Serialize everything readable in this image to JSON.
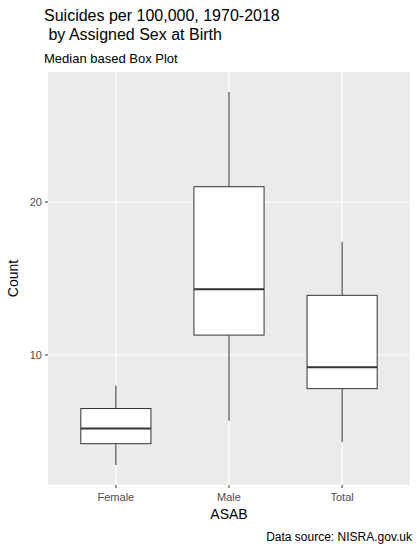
{
  "chart_data": {
    "type": "box",
    "title": "Suicides per 100,000, 1970-2018\n by Assigned Sex at Birth",
    "subtitle": "Median based Box Plot",
    "x_label": "ASAB",
    "y_label": "Count",
    "caption": "Data source: NISRA.gov.uk",
    "categories": [
      "Female",
      "Male",
      "Total"
    ],
    "min": [
      2.8,
      5.7,
      4.3
    ],
    "q1": [
      4.2,
      11.3,
      7.8
    ],
    "median": [
      5.2,
      14.3,
      9.2
    ],
    "q3": [
      6.5,
      21.0,
      13.9
    ],
    "max": [
      8.0,
      27.2,
      17.4
    ],
    "color": "#333333",
    "ylim": [
      1.5,
      28.5
    ],
    "yticks": [
      10,
      20
    ],
    "grid": true
  }
}
